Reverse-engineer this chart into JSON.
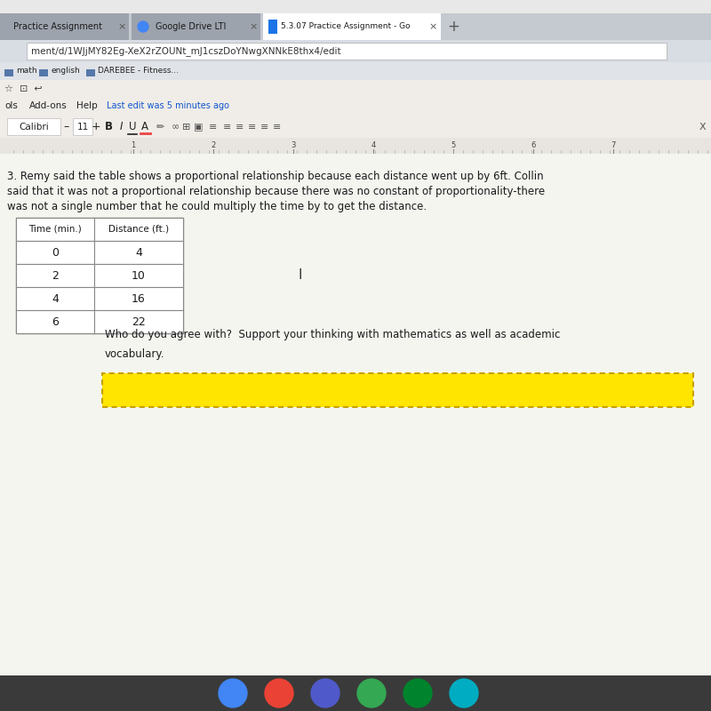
{
  "bg_color": "#e8e8e8",
  "page_bg": "#f5f5f0",
  "tab_bar_color": "#c5c9d0",
  "tab_inactive_color": "#9da3ad",
  "tab_active_color": "#ffffff",
  "tab_active_text": "5.3.07 Practice Assignment - Go",
  "tab_inactive_1": "Practice Assignment",
  "tab_inactive_2": "Google Drive LTI",
  "url_bar_color": "#d8dce3",
  "url_text": "ment/d/1WJjMY82Eg-XeX2rZOUNt_mJ1cszDoYNwgXNNkE8thx4/edit",
  "bookmarks": [
    "math",
    "english",
    "DAREBEE - Fitness..."
  ],
  "font_name": "Calibri",
  "font_size": "11",
  "paragraph_number": "3.",
  "paragraph_text_line1": "Remy said the table shows a proportional relationship because each distance went up by 6ft. Collin",
  "paragraph_text_line2": "said that it was not a proportional relationship because there was no constant of proportionality-there",
  "paragraph_text_line3": "was not a single number that he could multiply the time by to get the distance.",
  "table_headers": [
    "Time (min.)",
    "Distance (ft.)"
  ],
  "table_data": [
    [
      0,
      4
    ],
    [
      2,
      10
    ],
    [
      4,
      16
    ],
    [
      6,
      22
    ]
  ],
  "question_line1": "Who do you agree with?  Support your thinking with mathematics as well as academic",
  "question_line2": "vocabulary.",
  "answer_box_color": "#FFE500",
  "answer_box_border": "#c8a000",
  "taskbar_color": "#3a3a3a",
  "icon_colors": [
    "#4285F4",
    "#EA4335",
    "#5059C9",
    "#34A853",
    "#00832D",
    "#00ACC1"
  ],
  "menu_items_color": "#1155cc",
  "last_edit_text": "Last edit was 5 minutes ago",
  "menu_items": [
    "ols",
    "Add-ons",
    "Help"
  ]
}
